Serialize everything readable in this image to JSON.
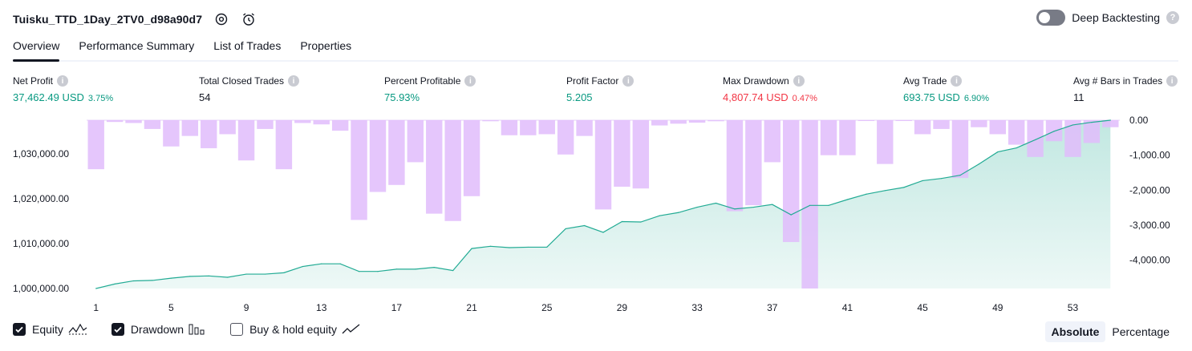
{
  "header": {
    "title": "Tuisku_TTD_1Day_2TV0_d98a90d7",
    "deep_backtesting_label": "Deep Backtesting",
    "deep_backtesting_enabled": false
  },
  "tabs": [
    {
      "label": "Overview",
      "active": true
    },
    {
      "label": "Performance Summary",
      "active": false
    },
    {
      "label": "List of Trades",
      "active": false
    },
    {
      "label": "Properties",
      "active": false
    }
  ],
  "metrics": {
    "net_profit": {
      "label": "Net Profit",
      "value": "37,462.49 USD",
      "pct": "3.75%"
    },
    "total_closed_trades": {
      "label": "Total Closed Trades",
      "value": "54"
    },
    "percent_profitable": {
      "label": "Percent Profitable",
      "value": "75.93%"
    },
    "profit_factor": {
      "label": "Profit Factor",
      "value": "5.205"
    },
    "max_drawdown": {
      "label": "Max Drawdown",
      "value": "4,807.74 USD",
      "pct": "0.47%"
    },
    "avg_trade": {
      "label": "Avg Trade",
      "value": "693.75 USD",
      "pct": "6.90%"
    },
    "avg_bars": {
      "label": "Avg # Bars in Trades",
      "value": "11"
    }
  },
  "chart_data": {
    "type": "area",
    "x": [
      1,
      2,
      3,
      4,
      5,
      6,
      7,
      8,
      9,
      10,
      11,
      12,
      13,
      14,
      15,
      16,
      17,
      18,
      19,
      20,
      21,
      22,
      23,
      24,
      25,
      26,
      27,
      28,
      29,
      30,
      31,
      32,
      33,
      34,
      35,
      36,
      37,
      38,
      39,
      40,
      41,
      42,
      43,
      44,
      45,
      46,
      47,
      48,
      49,
      50,
      51,
      52,
      53,
      54,
      55
    ],
    "x_ticks": [
      "1",
      "5",
      "9",
      "13",
      "17",
      "21",
      "25",
      "29",
      "33",
      "37",
      "41",
      "45",
      "49",
      "53"
    ],
    "equity_axis": {
      "ticks": [
        "1,000,000.00",
        "1,010,000.00",
        "1,020,000.00",
        "1,030,000.00"
      ],
      "ylim": [
        1000000,
        1037462.49
      ]
    },
    "drawdown_axis": {
      "ticks": [
        "0.00",
        "-1,000.00",
        "-2,000.00",
        "-3,000.00",
        "-4,000.00"
      ],
      "ylim": [
        -4807.74,
        0
      ]
    },
    "series": [
      {
        "name": "Equity",
        "color": "#22ab94",
        "values": [
          1000000,
          1001000,
          1001700,
          1001800,
          1002300,
          1002700,
          1002800,
          1002500,
          1003200,
          1003200,
          1003500,
          1004900,
          1005500,
          1005500,
          1003800,
          1003800,
          1004300,
          1004300,
          1004700,
          1004000,
          1008900,
          1009400,
          1009100,
          1009200,
          1009200,
          1013300,
          1014000,
          1012500,
          1014900,
          1014800,
          1016200,
          1016900,
          1018100,
          1019000,
          1017700,
          1018100,
          1018700,
          1016400,
          1018500,
          1018500,
          1019800,
          1021000,
          1021800,
          1022500,
          1024000,
          1024500,
          1025200,
          1027700,
          1030400,
          1031300,
          1033100,
          1035000,
          1036400,
          1037000,
          1037462
        ]
      },
      {
        "name": "Drawdown",
        "color": "#e1bcfc",
        "values": [
          -1400,
          -50,
          -80,
          -250,
          -750,
          -450,
          -800,
          -400,
          -1150,
          -250,
          -1400,
          -80,
          -120,
          -300,
          -2850,
          -2050,
          -1850,
          -1200,
          -2670,
          -2880,
          -2170,
          -30,
          -430,
          -430,
          -400,
          -980,
          -450,
          -2550,
          -1900,
          -1950,
          -150,
          -100,
          -70,
          -30,
          -2600,
          -2430,
          -1200,
          -3480,
          -4807.74,
          -1000,
          -1000,
          0,
          -1250,
          -10,
          -400,
          -250,
          -1650,
          -200,
          -400,
          -700,
          -1050,
          -600,
          -1050,
          -650,
          -200
        ]
      }
    ]
  },
  "legend": [
    {
      "label": "Equity",
      "checked": true,
      "icon": "equity-line-icon"
    },
    {
      "label": "Drawdown",
      "checked": true,
      "icon": "drawdown-bars-icon"
    },
    {
      "label": "Buy & hold equity",
      "checked": false,
      "icon": "buy-hold-line-icon"
    }
  ],
  "modes": [
    {
      "label": "Absolute",
      "active": true
    },
    {
      "label": "Percentage",
      "active": false
    }
  ]
}
